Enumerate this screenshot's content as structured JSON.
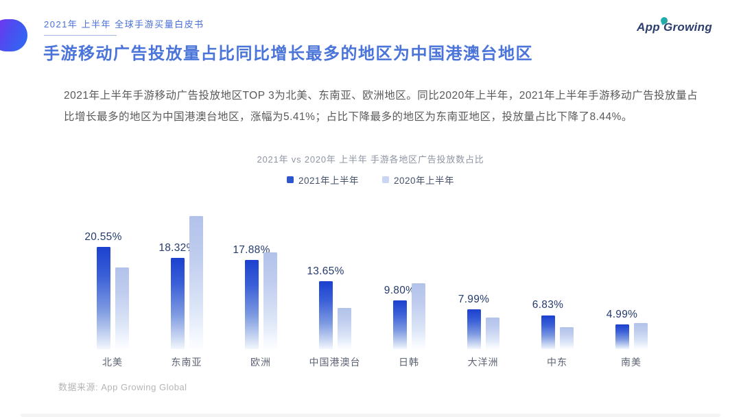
{
  "page": {
    "report_label": "2021年 上半年 全球手游买量白皮书",
    "title": "手游移动广告投放量占比同比增长最多的地区为中国港澳台地区",
    "paragraph_lines": [
      "2021年上半年手游移动广告投放地区TOP 3为北美、东南亚、欧洲地区。同比2020年上半年，2021年上半年手游移动广告投放量占",
      "比增长最多的地区为中国港澳台地区，涨幅为5.41%；占比下降最多的地区为东南亚地区，投放量占比下降了8.44%。"
    ],
    "source": "数据来源: App Growing Global"
  },
  "logo": {
    "part_a": "App",
    "part_g": "G",
    "part_rest": "rowing"
  },
  "chart_data": {
    "type": "bar",
    "title": "2021年 vs 2020年 上半年 手游各地区广告投放数占比",
    "categories": [
      "北美",
      "东南亚",
      "欧洲",
      "中国港澳台",
      "日韩",
      "大洋洲",
      "中东",
      "南美"
    ],
    "series": [
      {
        "name": "2021年上半年",
        "color": "#2d55cc",
        "values": [
          20.55,
          18.32,
          17.88,
          13.65,
          9.8,
          7.99,
          6.83,
          4.99
        ],
        "value_labels": [
          "20.55%",
          "18.32%",
          "17.88%",
          "13.65%",
          "9.80%",
          "7.99%",
          "6.83%",
          "4.99%"
        ]
      },
      {
        "name": "2020年上半年",
        "color": "#c9d6f3",
        "values": [
          16.4,
          26.76,
          19.5,
          8.24,
          13.3,
          6.3,
          4.4,
          5.2
        ],
        "value_labels": null
      }
    ],
    "ylim": [
      0,
      27
    ],
    "grid": false,
    "legend_position": "top",
    "value_labels_shown_for_series": 0
  }
}
